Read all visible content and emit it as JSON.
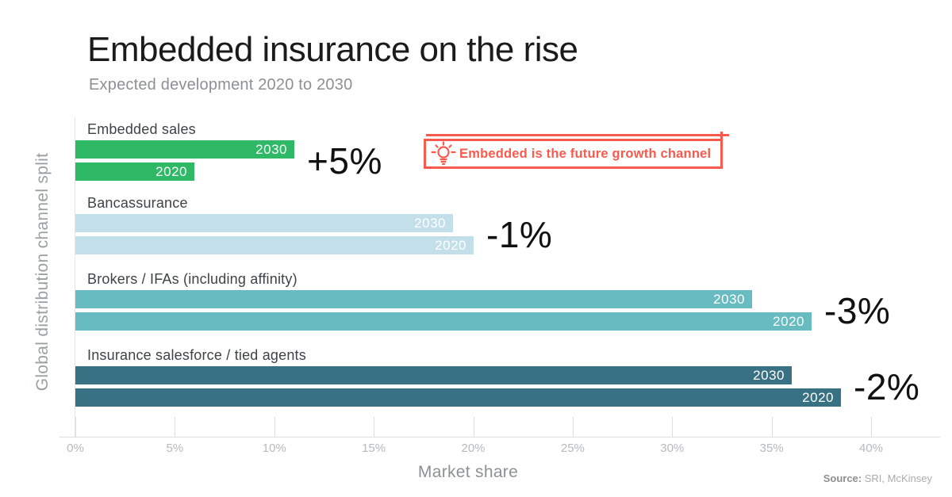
{
  "title": "Embedded insurance on the rise",
  "subtitle": "Expected development 2020 to 2030",
  "y_axis_label": "Global distribution channel split",
  "x_axis_label": "Market share",
  "source": {
    "label": "Source:",
    "text": "SRI, McKinsey"
  },
  "callout": {
    "text": "Embedded is the future growth channel",
    "icon": "lightbulb-icon",
    "accent_color": "#f85a4d"
  },
  "colors": {
    "title": "#1b1b1b",
    "subtitle_gray": "#8d9091",
    "axis_gray": "#dcdfe0",
    "tick_label_gray": "#b6babc",
    "category_label": "#3e4345",
    "accent_red": "#f85a4d"
  },
  "chart_data": {
    "type": "bar",
    "orientation": "horizontal",
    "title": "Embedded insurance on the rise",
    "subtitle": "Expected development 2020 to 2030",
    "xlabel": "Market share",
    "ylabel": "Global distribution channel split",
    "xlim": [
      0,
      40
    ],
    "x_ticks": [
      "0%",
      "5%",
      "10%",
      "15%",
      "20%",
      "25%",
      "30%",
      "35%",
      "40%"
    ],
    "grid": "ticks-only",
    "legend": "year labels inside bars",
    "categories": [
      "Embedded sales",
      "Bancassurance",
      "Brokers / IFAs (including affinity)",
      "Insurance salesforce / tied agents"
    ],
    "series": [
      {
        "name": "2030",
        "values": [
          11,
          19,
          34,
          36
        ]
      },
      {
        "name": "2020",
        "values": [
          6,
          20,
          37,
          38.5
        ]
      }
    ],
    "diff_labels": [
      "+5%",
      "-1%",
      "-3%",
      "-2%"
    ],
    "bar_colors": [
      "#2fb866",
      "#c3dfea",
      "#68bbc0",
      "#387184"
    ]
  }
}
